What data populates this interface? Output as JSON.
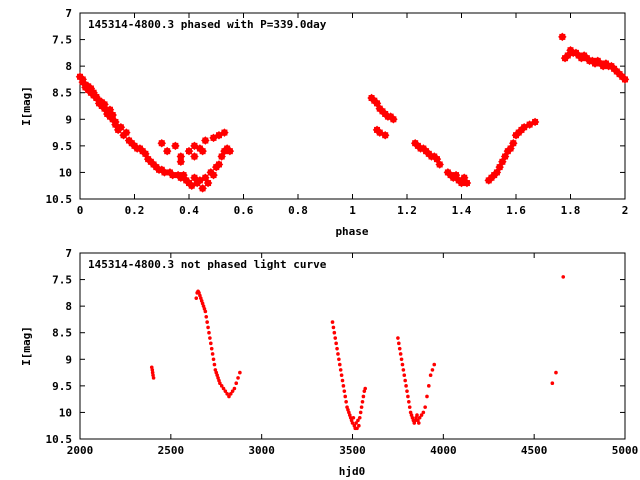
{
  "chart_data": [
    {
      "type": "scatter",
      "title": "145314-4800.3 phased with P=339.0day",
      "xlabel": "phase",
      "ylabel": "I[mag]",
      "xlim": [
        0,
        2
      ],
      "ylim": [
        7,
        10.5
      ],
      "y_inverted": true,
      "xticks": [
        "0",
        "0.2",
        "0.4",
        "0.6",
        "0.8",
        "1",
        "1.2",
        "1.4",
        "1.6",
        "1.8",
        "2"
      ],
      "yticks": [
        "7",
        "7.5",
        "8",
        "8.5",
        "9",
        "9.5",
        "10",
        "10.5"
      ],
      "marker": "filled-star",
      "color": "#ff0000",
      "series": [
        {
          "x": [
            0.0,
            0.01,
            0.01,
            0.02,
            0.02,
            0.03,
            0.03,
            0.04,
            0.04,
            0.05,
            0.05,
            0.06,
            0.06,
            0.07,
            0.07,
            0.08,
            0.08,
            0.09,
            0.09,
            0.1,
            0.1,
            0.11,
            0.11,
            0.12,
            0.12,
            0.13,
            0.13,
            0.14,
            0.15,
            0.16,
            0.17,
            0.18,
            0.19,
            0.2,
            0.21,
            0.22,
            0.23,
            0.24,
            0.25,
            0.26,
            0.27,
            0.28,
            0.29,
            0.3,
            0.31,
            0.33,
            0.34,
            0.36,
            0.37,
            0.38,
            0.39,
            0.4,
            0.41,
            0.42,
            0.43,
            0.44,
            0.45,
            0.46,
            0.47,
            0.48,
            0.49,
            0.5,
            0.51,
            0.52,
            0.53,
            0.54,
            0.55,
            0.3,
            0.32,
            0.35,
            0.37,
            0.4,
            0.42,
            0.44,
            0.46,
            0.49,
            0.51,
            0.53,
            0.37,
            0.42,
            0.45,
            1.07,
            1.08,
            1.09,
            1.1,
            1.11,
            1.12,
            1.13,
            1.14,
            1.15,
            1.09,
            1.1,
            1.12,
            1.23,
            1.24,
            1.25,
            1.26,
            1.27,
            1.28,
            1.29,
            1.3,
            1.31,
            1.32,
            1.35,
            1.36,
            1.37,
            1.38,
            1.39,
            1.4,
            1.41,
            1.42,
            1.5,
            1.51,
            1.52,
            1.53,
            1.54,
            1.55,
            1.56,
            1.57,
            1.58,
            1.59,
            1.6,
            1.61,
            1.62,
            1.63,
            1.65,
            1.67,
            1.77,
            1.78,
            1.79,
            1.8,
            1.81,
            1.82,
            1.83,
            1.84,
            1.85,
            1.86,
            1.87,
            1.88,
            1.89,
            1.9,
            1.91,
            1.92,
            1.93,
            1.94,
            1.95,
            1.96,
            1.97,
            1.98,
            1.99,
            2.0
          ],
          "y": [
            8.2,
            8.3,
            8.25,
            8.35,
            8.4,
            8.38,
            8.45,
            8.5,
            8.42,
            8.55,
            8.5,
            8.6,
            8.58,
            8.65,
            8.7,
            8.68,
            8.75,
            8.8,
            8.72,
            8.85,
            8.9,
            8.82,
            8.95,
            9.0,
            8.92,
            9.05,
            9.1,
            9.2,
            9.15,
            9.3,
            9.25,
            9.4,
            9.45,
            9.5,
            9.55,
            9.55,
            9.6,
            9.65,
            9.75,
            9.8,
            9.85,
            9.9,
            9.95,
            9.95,
            10.0,
            10.0,
            10.05,
            10.05,
            10.1,
            10.05,
            10.15,
            10.2,
            10.25,
            10.1,
            10.2,
            10.15,
            10.3,
            10.1,
            10.2,
            10.0,
            10.05,
            9.9,
            9.85,
            9.7,
            9.6,
            9.55,
            9.6,
            9.45,
            9.6,
            9.5,
            9.7,
            9.6,
            9.5,
            9.55,
            9.4,
            9.35,
            9.3,
            9.25,
            9.8,
            9.7,
            9.6,
            8.6,
            8.65,
            8.7,
            8.8,
            8.85,
            8.9,
            8.95,
            8.95,
            9.0,
            9.2,
            9.25,
            9.3,
            9.45,
            9.5,
            9.55,
            9.55,
            9.6,
            9.65,
            9.7,
            9.7,
            9.75,
            9.85,
            10.0,
            10.05,
            10.1,
            10.05,
            10.15,
            10.2,
            10.1,
            10.2,
            10.15,
            10.1,
            10.05,
            10.0,
            9.9,
            9.8,
            9.7,
            9.6,
            9.55,
            9.45,
            9.3,
            9.25,
            9.2,
            9.15,
            9.1,
            9.05,
            7.45,
            7.85,
            7.8,
            7.7,
            7.75,
            7.75,
            7.8,
            7.85,
            7.8,
            7.85,
            7.9,
            7.9,
            7.95,
            7.9,
            7.95,
            8.0,
            7.95,
            8.0,
            8.0,
            8.05,
            8.1,
            8.15,
            8.2,
            8.25
          ]
        }
      ]
    },
    {
      "type": "scatter",
      "title": "145314-4800.3 not phased light curve",
      "xlabel": "hjd0",
      "ylabel": "I[mag]",
      "xlim": [
        2000,
        5000
      ],
      "ylim": [
        7,
        10.5
      ],
      "y_inverted": true,
      "xticks": [
        "2000",
        "2500",
        "3000",
        "3500",
        "4000",
        "4500",
        "5000"
      ],
      "yticks": [
        "7",
        "7.5",
        "8",
        "8.5",
        "9",
        "9.5",
        "10",
        "10.5"
      ],
      "marker": "small-dot",
      "color": "#ff0000",
      "series": [
        {
          "x": [
            2395,
            2398,
            2400,
            2402,
            2405,
            2640,
            2645,
            2650,
            2655,
            2660,
            2665,
            2670,
            2675,
            2680,
            2685,
            2690,
            2695,
            2700,
            2705,
            2710,
            2715,
            2720,
            2725,
            2730,
            2735,
            2740,
            2745,
            2750,
            2755,
            2760,
            2765,
            2770,
            2780,
            2790,
            2800,
            2810,
            2820,
            2830,
            2840,
            2850,
            2860,
            2870,
            2880,
            3390,
            3395,
            3400,
            3405,
            3410,
            3415,
            3420,
            3425,
            3430,
            3435,
            3440,
            3445,
            3450,
            3455,
            3460,
            3465,
            3470,
            3475,
            3480,
            3485,
            3490,
            3495,
            3500,
            3505,
            3510,
            3515,
            3520,
            3525,
            3530,
            3535,
            3540,
            3545,
            3550,
            3555,
            3560,
            3565,
            3570,
            3750,
            3755,
            3760,
            3765,
            3770,
            3775,
            3780,
            3785,
            3790,
            3795,
            3800,
            3805,
            3810,
            3815,
            3820,
            3825,
            3830,
            3835,
            3840,
            3845,
            3850,
            3855,
            3860,
            3865,
            3870,
            3880,
            3890,
            3900,
            3910,
            3920,
            3930,
            3940,
            3950,
            4600,
            4620,
            4660
          ],
          "y": [
            9.15,
            9.2,
            9.25,
            9.3,
            9.35,
            7.85,
            7.75,
            7.72,
            7.75,
            7.8,
            7.85,
            7.9,
            7.95,
            8.0,
            8.05,
            8.1,
            8.2,
            8.3,
            8.4,
            8.5,
            8.6,
            8.7,
            8.8,
            8.9,
            9.0,
            9.1,
            9.2,
            9.25,
            9.3,
            9.35,
            9.4,
            9.45,
            9.5,
            9.55,
            9.6,
            9.65,
            9.7,
            9.65,
            9.6,
            9.55,
            9.45,
            9.35,
            9.25,
            8.3,
            8.4,
            8.5,
            8.6,
            8.7,
            8.8,
            8.9,
            9.0,
            9.1,
            9.2,
            9.3,
            9.4,
            9.5,
            9.6,
            9.7,
            9.8,
            9.9,
            9.95,
            10.0,
            10.05,
            10.1,
            10.15,
            10.2,
            10.1,
            10.25,
            10.3,
            10.2,
            10.3,
            10.15,
            10.25,
            10.1,
            10.0,
            9.9,
            9.8,
            9.7,
            9.6,
            9.55,
            8.6,
            8.7,
            8.8,
            8.9,
            9.0,
            9.1,
            9.2,
            9.3,
            9.4,
            9.5,
            9.6,
            9.7,
            9.8,
            9.9,
            10.0,
            10.05,
            10.1,
            10.15,
            10.2,
            10.15,
            10.1,
            10.05,
            10.15,
            10.2,
            10.1,
            10.05,
            10.0,
            9.9,
            9.7,
            9.5,
            9.3,
            9.2,
            9.1,
            9.45,
            9.25,
            7.45
          ]
        }
      ]
    }
  ]
}
